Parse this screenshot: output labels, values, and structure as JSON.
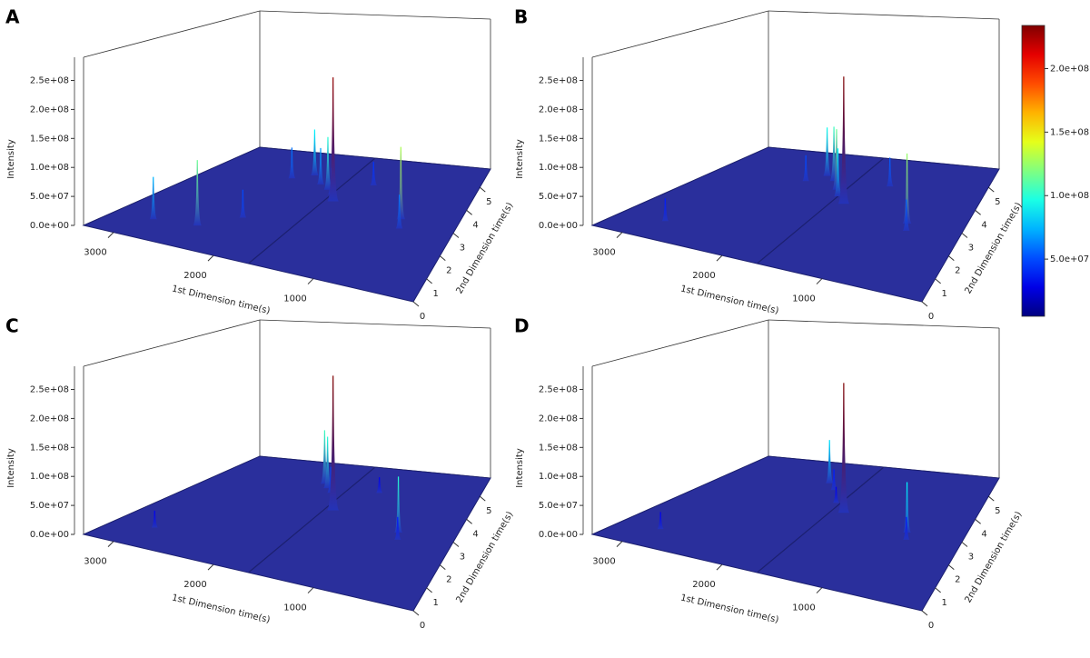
{
  "chart_data": [
    {
      "type": "surface3d",
      "panel_label": "A",
      "xlabel": "1st Dimension time(s)",
      "ylabel": "2nd Dimension time(s)",
      "zlabel": "Intensity",
      "xlim": [
        0,
        3300
      ],
      "xticks": [
        1000,
        2000,
        3000
      ],
      "ylim": [
        0,
        5.8
      ],
      "yticks": [
        0,
        1,
        2,
        3,
        4,
        5
      ],
      "zlim": [
        0,
        290000000
      ],
      "zticks": [
        {
          "value": 0,
          "label": "0.0e+00"
        },
        {
          "value": 50000000,
          "label": "5.0e+07"
        },
        {
          "value": 100000000,
          "label": "1.0e+08"
        },
        {
          "value": 150000000,
          "label": "1.5e+08"
        },
        {
          "value": 200000000,
          "label": "2.0e+08"
        },
        {
          "value": 250000000,
          "label": "2.5e+08"
        }
      ],
      "peaks": {
        "x": [
          1550,
          660,
          600,
          2475,
          2900,
          2100,
          1900,
          1750,
          2300,
          1650,
          1300,
          2200
        ],
        "y": [
          3.5,
          3.2,
          2.8,
          1.2,
          1.05,
          4.6,
          4.2,
          4.0,
          4.3,
          3.8,
          4.5,
          2.0
        ],
        "z": [
          230000000,
          130000000,
          60000000,
          115000000,
          75000000,
          90000000,
          70000000,
          100000000,
          60000000,
          50000000,
          45000000,
          50000000
        ]
      }
    },
    {
      "type": "surface3d",
      "panel_label": "B",
      "xlabel": "1st Dimension time(s)",
      "ylabel": "2nd Dimension time(s)",
      "zlabel": "Intensity",
      "xlim": [
        0,
        3300
      ],
      "xticks": [
        1000,
        2000,
        3000
      ],
      "ylim": [
        0,
        5.8
      ],
      "yticks": [
        0,
        1,
        2,
        3,
        4,
        5
      ],
      "zlim": [
        0,
        290000000
      ],
      "zticks": [
        {
          "value": 0,
          "label": "0.0e+00"
        },
        {
          "value": 50000000,
          "label": "5.0e+07"
        },
        {
          "value": 100000000,
          "label": "1.0e+08"
        },
        {
          "value": 150000000,
          "label": "1.5e+08"
        },
        {
          "value": 200000000,
          "label": "2.0e+08"
        },
        {
          "value": 250000000,
          "label": "2.5e+08"
        }
      ],
      "peaks": {
        "x": [
          1500,
          650,
          600,
          1900,
          1750,
          2050,
          1650,
          2850,
          2200,
          1200
        ],
        "y": [
          3.4,
          3.0,
          2.7,
          4.4,
          4.0,
          4.6,
          3.7,
          1.0,
          4.2,
          4.5
        ],
        "z": [
          235000000,
          125000000,
          55000000,
          105000000,
          115000000,
          95000000,
          90000000,
          40000000,
          50000000,
          55000000
        ]
      },
      "colorbar": {
        "clim": [
          5000000,
          234000000
        ],
        "ticks": [
          {
            "value": 50000000,
            "label": "5.0e+07"
          },
          {
            "value": 100000000,
            "label": "1.0e+08"
          },
          {
            "value": 150000000,
            "label": "1.5e+08"
          },
          {
            "value": 200000000,
            "label": "2.0e+08"
          }
        ]
      }
    },
    {
      "type": "surface3d",
      "panel_label": "C",
      "xlabel": "1st Dimension time(s)",
      "ylabel": "2nd Dimension time(s)",
      "zlabel": "Intensity",
      "xlim": [
        0,
        3300
      ],
      "xticks": [
        1000,
        2000,
        3000
      ],
      "ylim": [
        0,
        5.8
      ],
      "yticks": [
        0,
        1,
        2,
        3,
        4,
        5
      ],
      "zlim": [
        0,
        290000000
      ],
      "zticks": [
        {
          "value": 0,
          "label": "0.0e+00"
        },
        {
          "value": 50000000,
          "label": "5.0e+07"
        },
        {
          "value": 100000000,
          "label": "1.0e+08"
        },
        {
          "value": 150000000,
          "label": "1.5e+08"
        },
        {
          "value": 200000000,
          "label": "2.0e+08"
        },
        {
          "value": 250000000,
          "label": "2.5e+08"
        }
      ],
      "peaks": {
        "x": [
          1550,
          650,
          600,
          2000,
          1900,
          1800,
          2900,
          1250
        ],
        "y": [
          3.5,
          3.0,
          2.7,
          4.7,
          4.5,
          4.3,
          1.1,
          4.6
        ],
        "z": [
          250000000,
          100000000,
          40000000,
          105000000,
          100000000,
          50000000,
          30000000,
          30000000
        ]
      }
    },
    {
      "type": "surface3d",
      "panel_label": "D",
      "xlabel": "1st Dimension time(s)",
      "ylabel": "2nd Dimension time(s)",
      "zlabel": "Intensity",
      "xlim": [
        0,
        3300
      ],
      "xticks": [
        1000,
        2000,
        3000
      ],
      "ylim": [
        0,
        5.8
      ],
      "yticks": [
        0,
        1,
        2,
        3,
        4,
        5
      ],
      "zlim": [
        0,
        290000000
      ],
      "zticks": [
        {
          "value": 0,
          "label": "0.0e+00"
        },
        {
          "value": 50000000,
          "label": "5.0e+07"
        },
        {
          "value": 100000000,
          "label": "1.0e+08"
        },
        {
          "value": 150000000,
          "label": "1.5e+08"
        },
        {
          "value": 200000000,
          "label": "2.0e+08"
        },
        {
          "value": 250000000,
          "label": "2.5e+08"
        }
      ],
      "peaks": {
        "x": [
          1500,
          650,
          600,
          2050,
          1900,
          2900,
          1700
        ],
        "y": [
          3.4,
          3.0,
          2.7,
          4.7,
          4.4,
          1.0,
          3.8
        ],
        "z": [
          240000000,
          90000000,
          40000000,
          85000000,
          40000000,
          30000000,
          30000000
        ]
      }
    }
  ]
}
